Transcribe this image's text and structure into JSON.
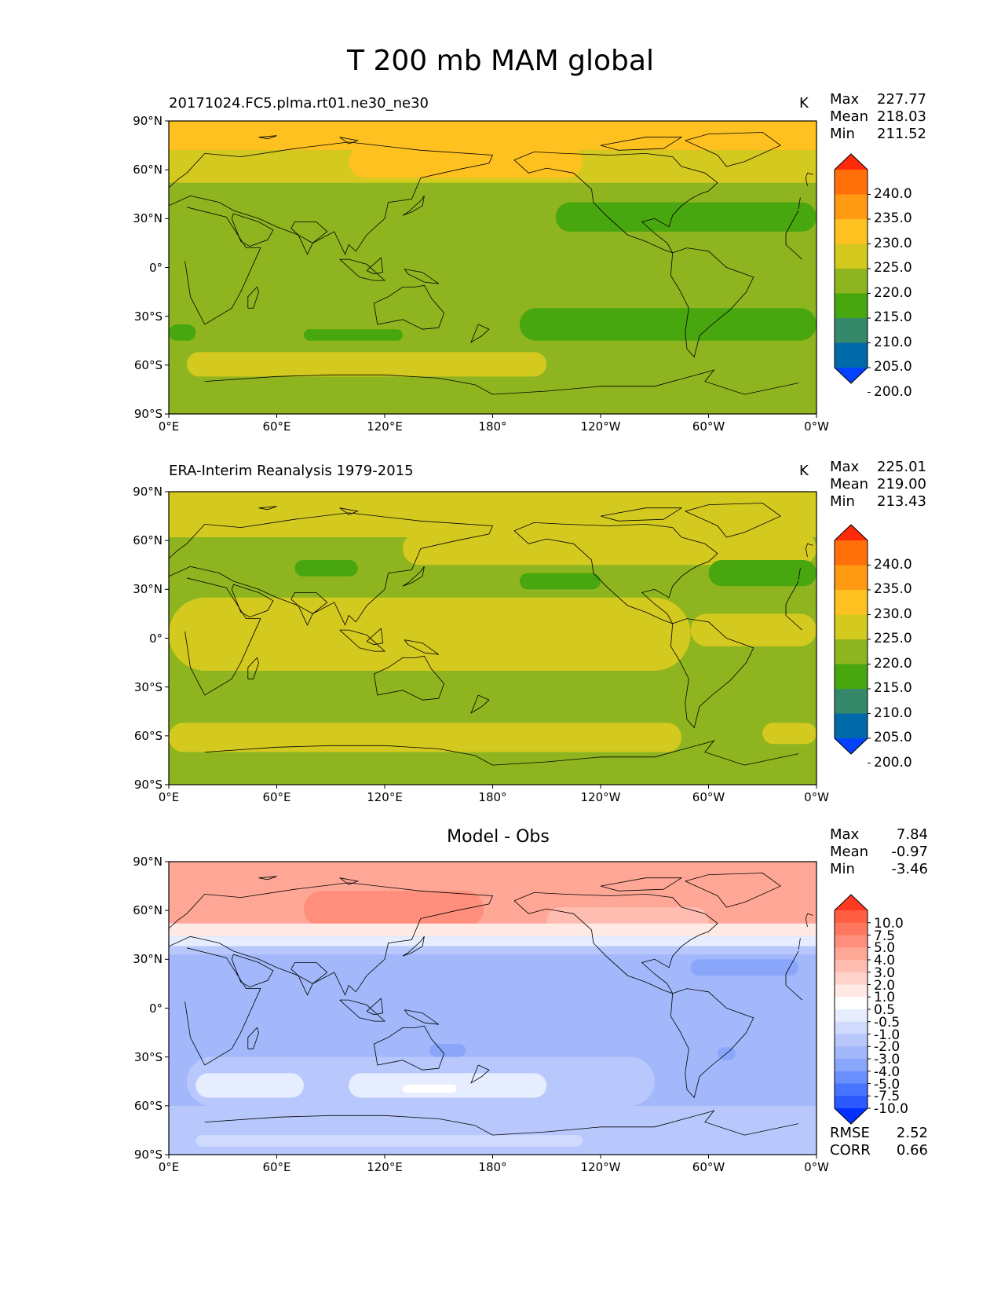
{
  "figure_title": "T 200 mb MAM global",
  "colors": {
    "abs_levels": [
      "#0343ff",
      "#006aa8",
      "#36886a",
      "#48a60f",
      "#8eb51f",
      "#d3c91f",
      "#fec11f",
      "#ff9a12",
      "#ff6f0a",
      "#ff2a0a"
    ],
    "diff_levels": [
      "#0330ff",
      "#2b59ff",
      "#4875ff",
      "#6a90ff",
      "#8aa6fb",
      "#a2b8fb",
      "#b8c8fc",
      "#d0dafd",
      "#e6edfe",
      "#ffffff",
      "#ffe9e5",
      "#ffd2ca",
      "#ffbdb1",
      "#ffa797",
      "#ff8f7c",
      "#ff775f",
      "#ff5e42",
      "#ff3a20"
    ],
    "coast": "#000000"
  },
  "chart_data": [
    {
      "type": "heatmap",
      "panel_id": "model",
      "title": "20171024.FC5.plma.rt01.ne30_ne30",
      "units": "K",
      "stats": {
        "max": "227.77",
        "mean": "218.03",
        "min": "211.52"
      },
      "stat_labels": {
        "max": "Max",
        "mean": "Mean",
        "min": "Min"
      },
      "xlabel": "",
      "ylabel": "",
      "x_ticks": [
        "0°E",
        "60°E",
        "120°E",
        "180°",
        "120°W",
        "60°W",
        "0°W"
      ],
      "y_ticks": [
        "90°N",
        "60°N",
        "30°N",
        "0°",
        "30°S",
        "60°S",
        "90°S"
      ],
      "x_range": [
        0,
        360
      ],
      "y_range": [
        -90,
        90
      ],
      "colorbar_labels": [
        "240.0",
        "235.0",
        "230.0",
        "225.0",
        "220.0",
        "215.0",
        "210.0",
        "205.0",
        "200.0"
      ],
      "colorbar_levels": [
        200,
        205,
        210,
        215,
        220,
        225,
        230,
        235,
        240
      ],
      "background_level": 215,
      "regions": [
        {
          "level": 225,
          "lon0": 0,
          "lon1": 360,
          "lat0": 72,
          "lat1": 90
        },
        {
          "level": 220,
          "lon0": 0,
          "lon1": 360,
          "lat0": 52,
          "lat1": 72
        },
        {
          "level": 225,
          "lon0": 100,
          "lon1": 230,
          "lat0": 55,
          "lat1": 75
        },
        {
          "level": 210,
          "lon0": 215,
          "lon1": 360,
          "lat0": 22,
          "lat1": 40
        },
        {
          "level": 210,
          "lon0": 195,
          "lon1": 360,
          "lat0": -45,
          "lat1": -25
        },
        {
          "level": 210,
          "lon0": 0,
          "lon1": 15,
          "lat0": -45,
          "lat1": -35
        },
        {
          "level": 210,
          "lon0": 75,
          "lon1": 130,
          "lat0": -45,
          "lat1": -38
        },
        {
          "level": 220,
          "lon0": 10,
          "lon1": 210,
          "lat0": -67,
          "lat1": -52
        }
      ]
    },
    {
      "type": "heatmap",
      "panel_id": "obs",
      "title": "ERA-Interim Reanalysis 1979-2015",
      "units": "K",
      "stats": {
        "max": "225.01",
        "mean": "219.00",
        "min": "213.43"
      },
      "stat_labels": {
        "max": "Max",
        "mean": "Mean",
        "min": "Min"
      },
      "xlabel": "",
      "ylabel": "",
      "x_ticks": [
        "0°E",
        "60°E",
        "120°E",
        "180°",
        "120°W",
        "60°W",
        "0°W"
      ],
      "y_ticks": [
        "90°N",
        "60°N",
        "30°N",
        "0°",
        "30°S",
        "60°S",
        "90°S"
      ],
      "x_range": [
        0,
        360
      ],
      "y_range": [
        -90,
        90
      ],
      "colorbar_labels": [
        "240.0",
        "235.0",
        "230.0",
        "225.0",
        "220.0",
        "215.0",
        "210.0",
        "205.0",
        "200.0"
      ],
      "colorbar_levels": [
        200,
        205,
        210,
        215,
        220,
        225,
        230,
        235,
        240
      ],
      "background_level": 215,
      "regions": [
        {
          "level": 220,
          "lon0": 0,
          "lon1": 360,
          "lat0": 62,
          "lat1": 90
        },
        {
          "level": 220,
          "lon0": 130,
          "lon1": 360,
          "lat0": 45,
          "lat1": 65
        },
        {
          "level": 210,
          "lon0": 70,
          "lon1": 105,
          "lat0": 38,
          "lat1": 48
        },
        {
          "level": 210,
          "lon0": 195,
          "lon1": 240,
          "lat0": 30,
          "lat1": 40
        },
        {
          "level": 210,
          "lon0": 300,
          "lon1": 360,
          "lat0": 32,
          "lat1": 48
        },
        {
          "level": 220,
          "lon0": 0,
          "lon1": 290,
          "lat0": -20,
          "lat1": 25
        },
        {
          "level": 220,
          "lon0": 290,
          "lon1": 360,
          "lat0": -5,
          "lat1": 15
        },
        {
          "level": 220,
          "lon0": 0,
          "lon1": 285,
          "lat0": -70,
          "lat1": -52
        },
        {
          "level": 220,
          "lon0": 330,
          "lon1": 360,
          "lat0": -65,
          "lat1": -52
        }
      ]
    },
    {
      "type": "heatmap",
      "panel_id": "diff",
      "title": "Model - Obs",
      "units": "",
      "stats": {
        "max": "7.84",
        "mean": "-0.97",
        "min": "-3.46"
      },
      "stat_labels": {
        "max": "Max",
        "mean": "Mean",
        "min": "Min"
      },
      "extra_stats": {
        "rmse_label": "RMSE",
        "rmse": "2.52",
        "corr_label": "CORR",
        "corr": "0.66"
      },
      "xlabel": "",
      "ylabel": "",
      "x_ticks": [
        "0°E",
        "60°E",
        "120°E",
        "180°",
        "120°W",
        "60°W",
        "0°W"
      ],
      "y_ticks": [
        "90°N",
        "60°N",
        "30°N",
        "0°",
        "30°S",
        "60°S",
        "90°S"
      ],
      "x_range": [
        0,
        360
      ],
      "y_range": [
        -90,
        90
      ],
      "colorbar_labels": [
        "10.0",
        "7.5",
        "5.0",
        "4.0",
        "3.0",
        "2.0",
        "1.0",
        "0.5",
        "-0.5",
        "-1.0",
        "-2.0",
        "-3.0",
        "-4.0",
        "-5.0",
        "-7.5",
        "-10.0"
      ],
      "colorbar_levels": [
        -10,
        -7.5,
        -5,
        -4,
        -3,
        -2,
        -1,
        -0.5,
        0.5,
        1,
        2,
        3,
        4,
        5,
        7.5,
        10
      ],
      "background_level": -2.5,
      "regions": [
        {
          "level": 4.5,
          "lon0": 0,
          "lon1": 360,
          "lat0": 52,
          "lat1": 90
        },
        {
          "level": 3.5,
          "lon0": 210,
          "lon1": 300,
          "lat0": 45,
          "lat1": 62
        },
        {
          "level": 6,
          "lon0": 75,
          "lon1": 175,
          "lat0": 50,
          "lat1": 72
        },
        {
          "level": 1.5,
          "lon0": 0,
          "lon1": 360,
          "lat0": 44,
          "lat1": 52
        },
        {
          "level": 0,
          "lon0": 0,
          "lon1": 360,
          "lat0": 38,
          "lat1": 44
        },
        {
          "level": -1.5,
          "lon0": 0,
          "lon1": 360,
          "lat0": 33,
          "lat1": 38
        },
        {
          "level": -3.5,
          "lon0": 290,
          "lon1": 350,
          "lat0": 20,
          "lat1": 30
        },
        {
          "level": -1.5,
          "lon0": 0,
          "lon1": 360,
          "lat0": -90,
          "lat1": -60
        },
        {
          "level": -0.75,
          "lon0": 15,
          "lon1": 230,
          "lat0": -85,
          "lat1": -78
        },
        {
          "level": -1.5,
          "lon0": 10,
          "lon1": 270,
          "lat0": -60,
          "lat1": -30
        },
        {
          "level": 0,
          "lon0": 15,
          "lon1": 75,
          "lat0": -55,
          "lat1": -40
        },
        {
          "level": 0,
          "lon0": 100,
          "lon1": 210,
          "lat0": -55,
          "lat1": -40
        },
        {
          "level": 0.75,
          "lon0": 130,
          "lon1": 160,
          "lat0": -52,
          "lat1": -47
        },
        {
          "level": -3.5,
          "lon0": 145,
          "lon1": 165,
          "lat0": -30,
          "lat1": -22
        },
        {
          "level": -3.5,
          "lon0": 305,
          "lon1": 315,
          "lat0": -32,
          "lat1": -24
        }
      ]
    }
  ]
}
